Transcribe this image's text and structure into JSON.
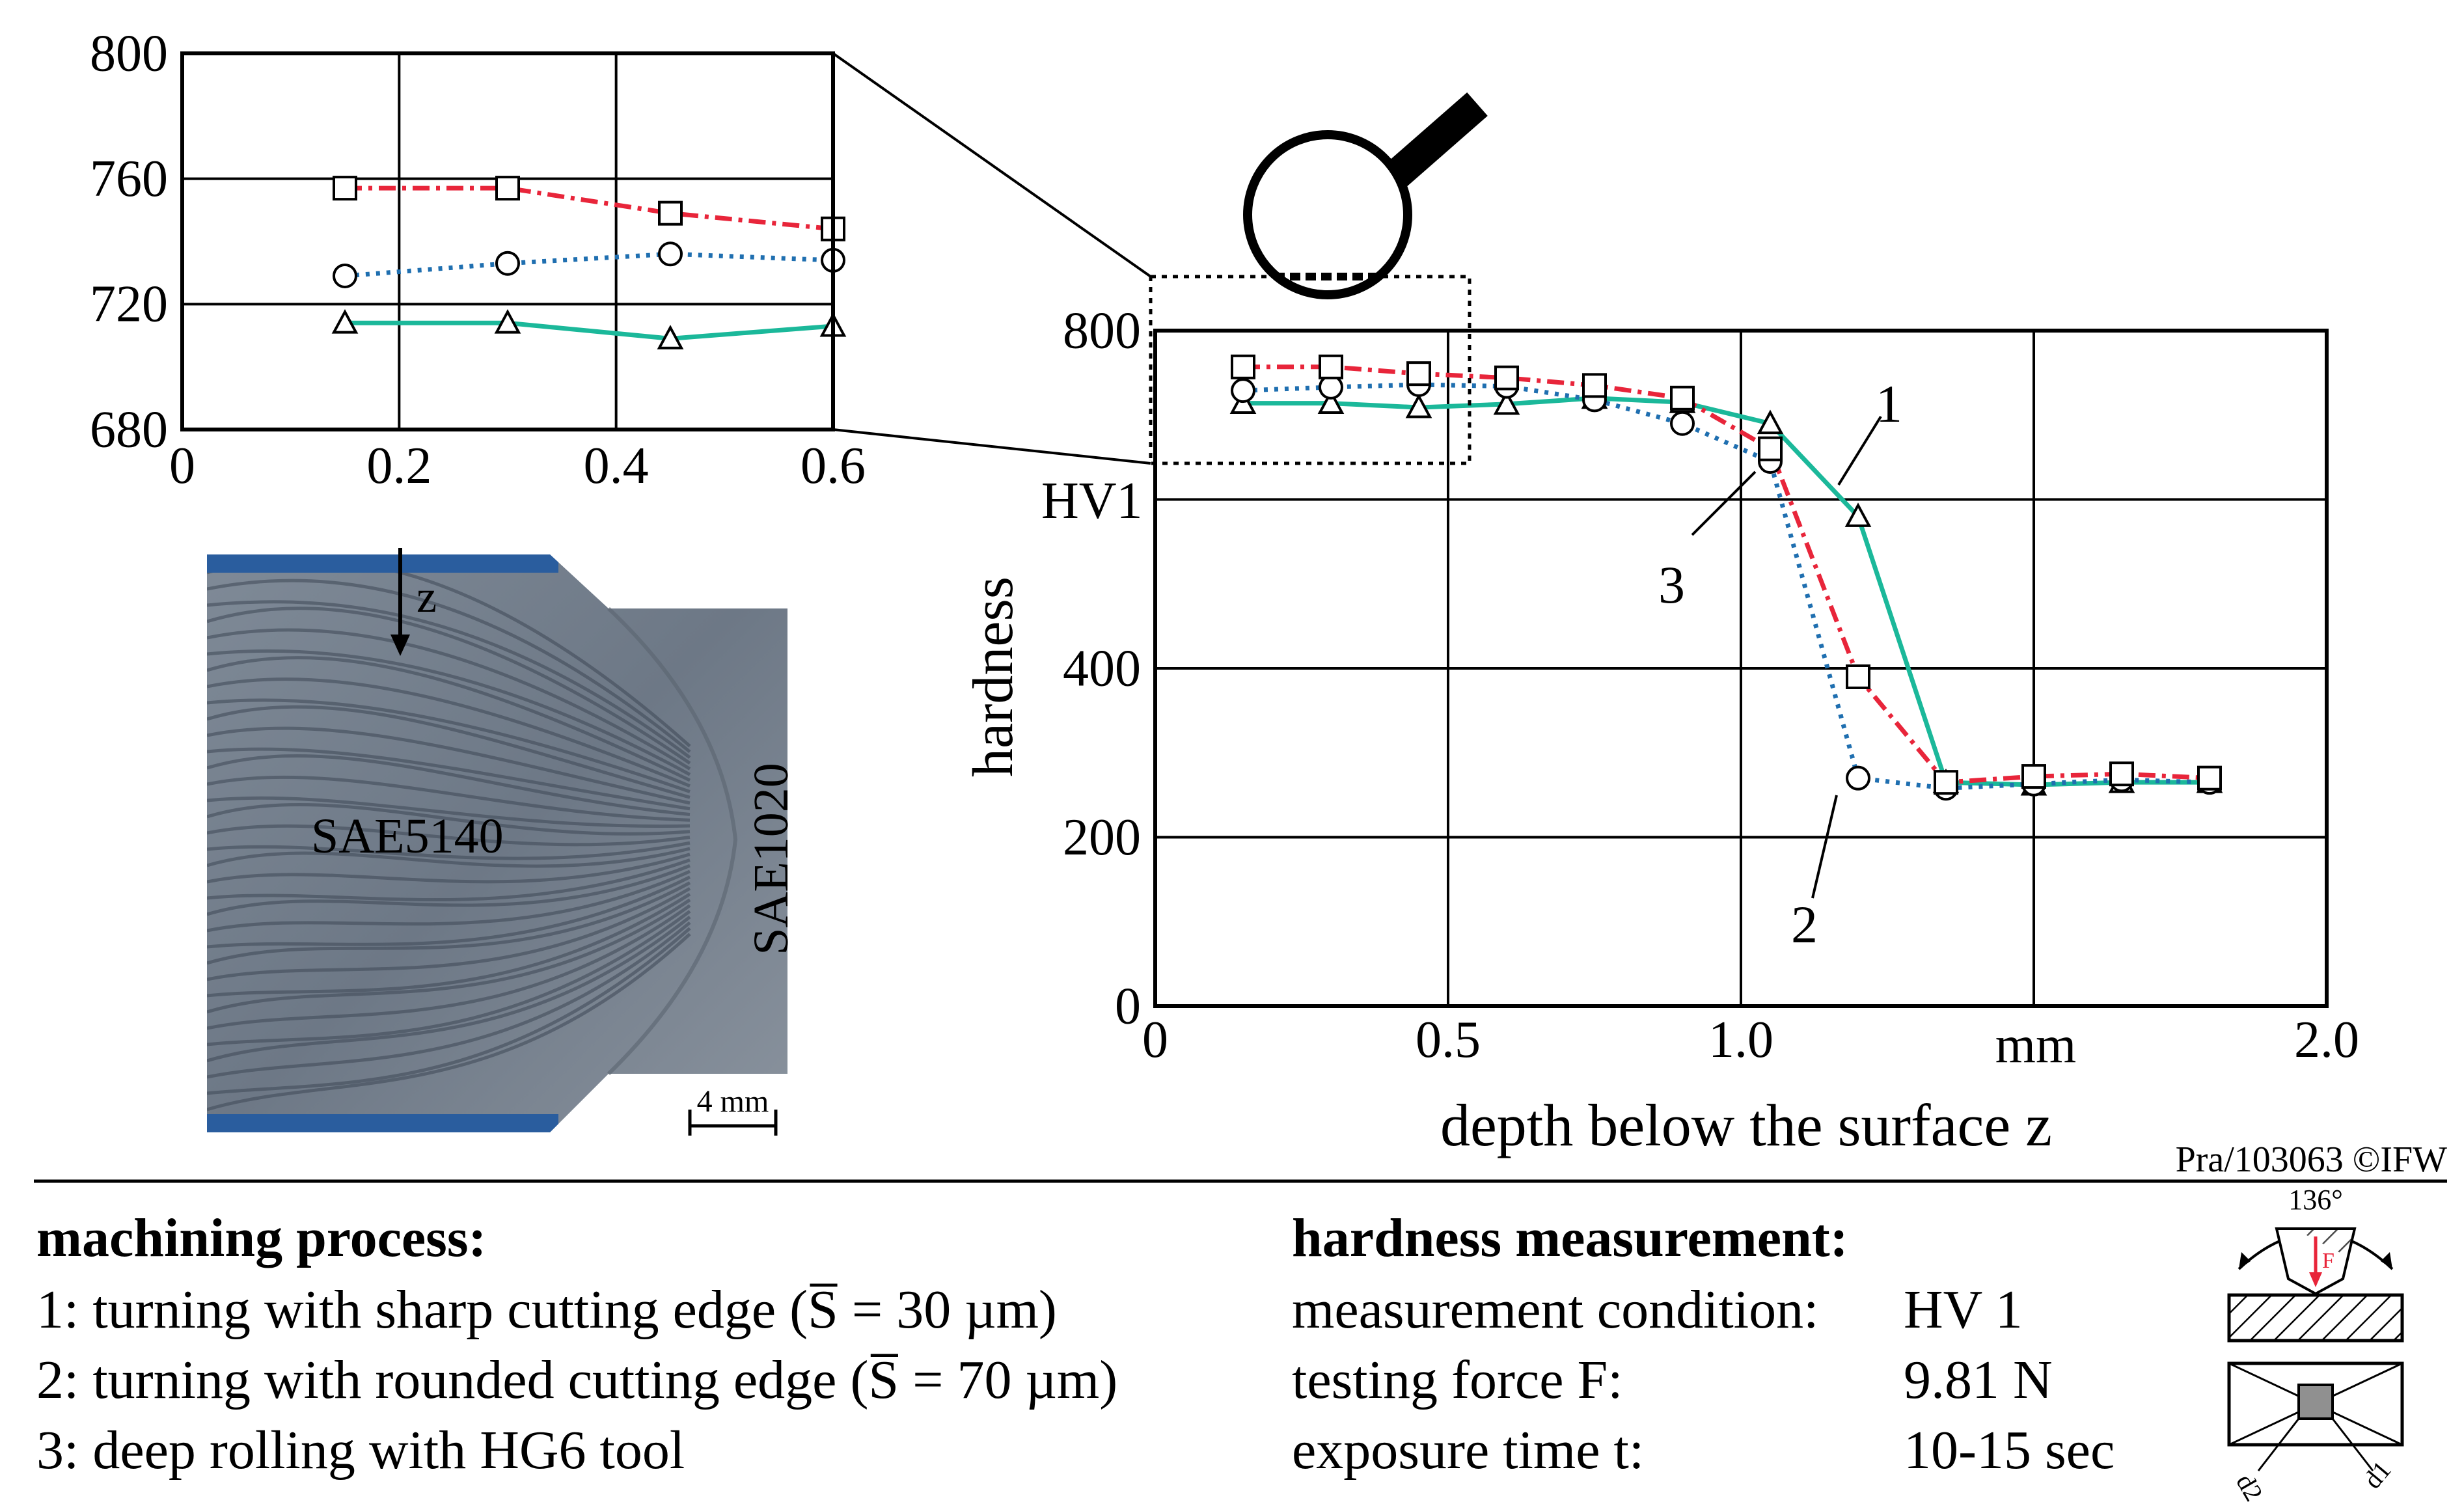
{
  "colors": {
    "series1": "#1bb89a",
    "series2": "#1f6fb0",
    "series3": "#e8253a"
  },
  "chart_data": [
    {
      "type": "line",
      "xlabel": "depth below the surface z",
      "ylabel": "hardness",
      "yunit": "HV1",
      "xunit": "mm",
      "xlim": [
        0,
        2.0
      ],
      "ylim": [
        0,
        800
      ],
      "xticks": [
        {
          "v": 0,
          "label": "0"
        },
        {
          "v": 0.5,
          "label": "0.5"
        },
        {
          "v": 1.0,
          "label": "1.0"
        },
        {
          "v": 2.0,
          "label": "2.0"
        }
      ],
      "yticks": [
        {
          "v": 0,
          "label": "0"
        },
        {
          "v": 200,
          "label": "200"
        },
        {
          "v": 400,
          "label": "400"
        },
        {
          "v": 800,
          "label": "800"
        }
      ],
      "grid": true,
      "series": [
        {
          "label": "1",
          "marker": "triangle",
          "style": "solid",
          "x": [
            0.15,
            0.3,
            0.45,
            0.6,
            0.75,
            0.9,
            1.05,
            1.2,
            1.35,
            1.5,
            1.65,
            1.8
          ],
          "y": [
            714,
            714,
            709,
            713,
            720,
            715,
            690,
            580,
            265,
            262,
            265,
            265
          ]
        },
        {
          "label": "2",
          "marker": "circle",
          "style": "dotted",
          "x": [
            0.15,
            0.3,
            0.45,
            0.6,
            0.75,
            0.9,
            1.05,
            1.2,
            1.35,
            1.5,
            1.65,
            1.8
          ],
          "y": [
            729,
            733,
            736,
            734,
            718,
            690,
            645,
            270,
            258,
            263,
            268,
            265
          ]
        },
        {
          "label": "3",
          "marker": "square",
          "style": "dashdot",
          "x": [
            0.15,
            0.3,
            0.45,
            0.6,
            0.75,
            0.9,
            1.05,
            1.2,
            1.35,
            1.5,
            1.65,
            1.8
          ],
          "y": [
            757,
            757,
            749,
            744,
            735,
            720,
            660,
            390,
            265,
            272,
            275,
            270
          ]
        }
      ],
      "annotations": [
        {
          "text": "1"
        },
        {
          "text": "2"
        },
        {
          "text": "3"
        }
      ]
    },
    {
      "type": "line",
      "xlim": [
        0,
        0.6
      ],
      "ylim": [
        680,
        800
      ],
      "xticks": [
        {
          "v": 0,
          "label": "0"
        },
        {
          "v": 0.2,
          "label": "0.2"
        },
        {
          "v": 0.4,
          "label": "0.4"
        },
        {
          "v": 0.6,
          "label": "0.6"
        }
      ],
      "yticks": [
        {
          "v": 680,
          "label": "680"
        },
        {
          "v": 720,
          "label": "720"
        },
        {
          "v": 760,
          "label": "760"
        },
        {
          "v": 800,
          "label": "800"
        }
      ],
      "grid": true,
      "series": [
        {
          "label": "1",
          "marker": "triangle",
          "style": "solid",
          "x": [
            0.15,
            0.3,
            0.45,
            0.6
          ],
          "y": [
            714,
            714,
            709,
            713
          ]
        },
        {
          "label": "2",
          "marker": "circle",
          "style": "dotted",
          "x": [
            0.15,
            0.3,
            0.45,
            0.6
          ],
          "y": [
            729,
            733,
            736,
            734
          ]
        },
        {
          "label": "3",
          "marker": "square",
          "style": "dashdot",
          "x": [
            0.15,
            0.3,
            0.45,
            0.6
          ],
          "y": [
            757,
            757,
            749,
            744
          ]
        }
      ]
    }
  ],
  "micrograph": {
    "label_depth": "z",
    "label_material_main": "SAE5140",
    "label_material_side": "SAE1020",
    "scale_bar": "4 mm"
  },
  "copyright": "Pra/103063 ©IFW",
  "machining": {
    "heading": "machining process:",
    "items": [
      "1: turning with sharp cutting edge (S̅ = 30 µm)",
      "2: turning with rounded cutting edge (S̅ = 70 µm)",
      "3: deep rolling with HG6 tool"
    ]
  },
  "hardness_measurement": {
    "heading": "hardness measurement:",
    "rows": [
      {
        "label": "measurement condition:",
        "value": "HV 1"
      },
      {
        "label": "testing force F:",
        "value": "9.81 N"
      },
      {
        "label": "exposure time t:",
        "value": "10-15 sec"
      }
    ]
  },
  "indenter": {
    "angle": "136°",
    "force": "F",
    "d2": "d2",
    "d1": "d1"
  }
}
